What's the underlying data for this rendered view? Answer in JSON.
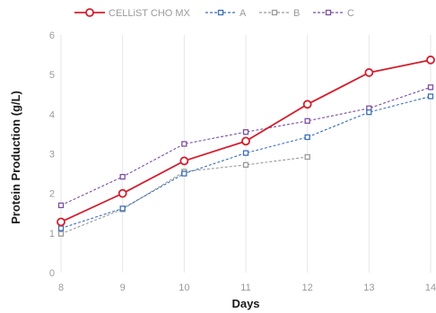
{
  "chart_data": {
    "type": "line",
    "xlabel": "Days",
    "ylabel": "Protein Production (g/L)",
    "x": [
      8,
      9,
      10,
      11,
      12,
      13,
      14
    ],
    "xlim": [
      8,
      14
    ],
    "ylim": [
      0,
      6
    ],
    "x_ticks": [
      "8",
      "9",
      "10",
      "11",
      "12",
      "13",
      "14"
    ],
    "y_ticks": [
      "0",
      "1",
      "2",
      "3",
      "4",
      "5",
      "6"
    ],
    "grid": "vertical",
    "legend_position": "top",
    "series": [
      {
        "name": "CELLiST CHO MX",
        "color": "#d1202f",
        "style": "solid",
        "marker": "circle",
        "values": [
          1.28,
          2.0,
          2.82,
          3.32,
          4.25,
          5.05,
          5.37
        ]
      },
      {
        "name": "A",
        "color": "#3a6fb7",
        "style": "dashed",
        "marker": "square",
        "values": [
          1.12,
          1.62,
          2.5,
          3.02,
          3.42,
          4.05,
          4.45
        ]
      },
      {
        "name": "B",
        "color": "#9a9a9a",
        "style": "dashed",
        "marker": "square",
        "values": [
          0.98,
          1.6,
          2.55,
          2.72,
          2.92,
          null,
          null
        ]
      },
      {
        "name": "C",
        "color": "#7b4fa0",
        "style": "dashed",
        "marker": "square",
        "values": [
          1.7,
          2.42,
          3.25,
          3.55,
          3.83,
          4.15,
          4.68
        ]
      }
    ]
  }
}
